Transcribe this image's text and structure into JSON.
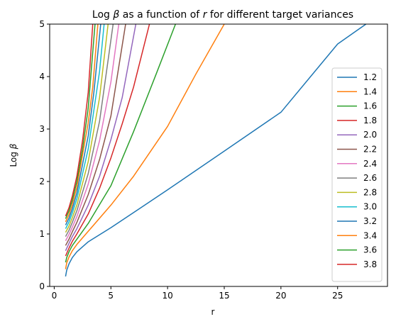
{
  "chart_data": {
    "type": "line",
    "title": "Log β as a function of r for different target variances",
    "title_parts": {
      "pre": "Log ",
      "beta": "β",
      "mid": " as a function of ",
      "r": "r",
      "post": " for different target variances"
    },
    "xlabel": "r",
    "ylabel": "Log β",
    "ylabel_parts": {
      "pre": "Log ",
      "beta": "β"
    },
    "xlim": [
      -0.4,
      29.4
    ],
    "ylim": [
      0,
      5
    ],
    "xticks": [
      0,
      5,
      10,
      15,
      20,
      25
    ],
    "yticks": [
      0,
      1,
      2,
      3,
      4,
      5
    ],
    "xtick_labels": [
      "0",
      "5",
      "10",
      "15",
      "20",
      "25"
    ],
    "ytick_labels": [
      "0",
      "1",
      "2",
      "3",
      "4",
      "5"
    ],
    "grid": false,
    "legend_position": "right",
    "series": [
      {
        "name": "1.2",
        "color": "#1f77b4",
        "x": [
          1.0,
          1.1,
          1.3,
          1.6,
          2.0,
          3.0,
          5.0,
          7.5,
          10.0,
          15.0,
          20.0,
          25.0,
          27.5
        ],
        "y": [
          0.19,
          0.31,
          0.43,
          0.55,
          0.66,
          0.85,
          1.12,
          1.48,
          1.84,
          2.58,
          3.32,
          4.62,
          5.0
        ]
      },
      {
        "name": "1.4",
        "color": "#ff7f0e",
        "x": [
          1.0,
          1.1,
          1.3,
          1.6,
          2.0,
          3.0,
          5.0,
          7.0,
          10.0,
          12.5,
          15.0
        ],
        "y": [
          0.33,
          0.45,
          0.56,
          0.68,
          0.8,
          1.05,
          1.55,
          2.1,
          3.05,
          4.05,
          5.0
        ]
      },
      {
        "name": "1.6",
        "color": "#2ca02c",
        "x": [
          1.0,
          1.1,
          1.3,
          1.6,
          2.0,
          3.0,
          5.0,
          7.0,
          9.0,
          10.7
        ],
        "y": [
          0.46,
          0.55,
          0.66,
          0.78,
          0.9,
          1.2,
          1.92,
          2.95,
          4.05,
          5.0
        ]
      },
      {
        "name": "1.8",
        "color": "#d62728",
        "x": [
          1.0,
          1.3,
          1.6,
          2.0,
          3.0,
          4.0,
          5.0,
          6.0,
          7.0,
          8.4
        ],
        "y": [
          0.58,
          0.73,
          0.86,
          1.0,
          1.38,
          1.87,
          2.45,
          3.1,
          3.8,
          5.0
        ]
      },
      {
        "name": "2.0",
        "color": "#9467bd",
        "x": [
          1.0,
          1.3,
          1.6,
          2.0,
          3.0,
          4.0,
          5.0,
          6.0,
          7.2
        ],
        "y": [
          0.68,
          0.82,
          0.95,
          1.1,
          1.55,
          2.1,
          2.8,
          3.6,
          5.0
        ]
      },
      {
        "name": "2.2",
        "color": "#8c564b",
        "x": [
          1.0,
          1.3,
          1.6,
          2.0,
          3.0,
          4.0,
          5.0,
          6.3
        ],
        "y": [
          0.78,
          0.9,
          1.04,
          1.22,
          1.75,
          2.42,
          3.25,
          5.0
        ]
      },
      {
        "name": "2.4",
        "color": "#e377c2",
        "x": [
          1.0,
          1.3,
          1.6,
          2.0,
          3.0,
          4.0,
          5.0,
          5.7
        ],
        "y": [
          0.87,
          0.99,
          1.13,
          1.33,
          1.95,
          2.78,
          3.9,
          5.0
        ]
      },
      {
        "name": "2.6",
        "color": "#7f7f7f",
        "x": [
          1.0,
          1.3,
          1.6,
          2.0,
          3.0,
          4.0,
          5.2
        ],
        "y": [
          0.95,
          1.07,
          1.22,
          1.44,
          2.15,
          3.15,
          5.0
        ]
      },
      {
        "name": "2.8",
        "color": "#bcbd22",
        "x": [
          1.0,
          1.3,
          1.6,
          2.0,
          3.0,
          4.0,
          4.75
        ],
        "y": [
          1.03,
          1.15,
          1.31,
          1.55,
          2.38,
          3.6,
          5.0
        ]
      },
      {
        "name": "3.0",
        "color": "#17becf",
        "x": [
          1.0,
          1.3,
          1.6,
          2.0,
          3.0,
          4.0,
          4.4
        ],
        "y": [
          1.1,
          1.23,
          1.4,
          1.67,
          2.62,
          4.1,
          5.0
        ]
      },
      {
        "name": "3.2",
        "color": "#1f77b4",
        "x": [
          1.0,
          1.3,
          1.6,
          2.0,
          3.0,
          3.5,
          4.1
        ],
        "y": [
          1.17,
          1.3,
          1.48,
          1.78,
          2.87,
          3.7,
          5.0
        ]
      },
      {
        "name": "3.4",
        "color": "#ff7f0e",
        "x": [
          1.0,
          1.3,
          1.6,
          2.0,
          3.0,
          3.4,
          3.85
        ],
        "y": [
          1.23,
          1.37,
          1.56,
          1.89,
          3.12,
          3.8,
          5.0
        ]
      },
      {
        "name": "3.6",
        "color": "#2ca02c",
        "x": [
          1.0,
          1.3,
          1.6,
          2.0,
          2.5,
          3.0,
          3.6
        ],
        "y": [
          1.29,
          1.44,
          1.64,
          2.0,
          2.62,
          3.4,
          5.0
        ]
      },
      {
        "name": "3.8",
        "color": "#d62728",
        "x": [
          1.0,
          1.3,
          1.6,
          2.0,
          2.5,
          3.0,
          3.4
        ],
        "y": [
          1.34,
          1.5,
          1.72,
          2.1,
          2.78,
          3.7,
          5.0
        ]
      }
    ]
  }
}
